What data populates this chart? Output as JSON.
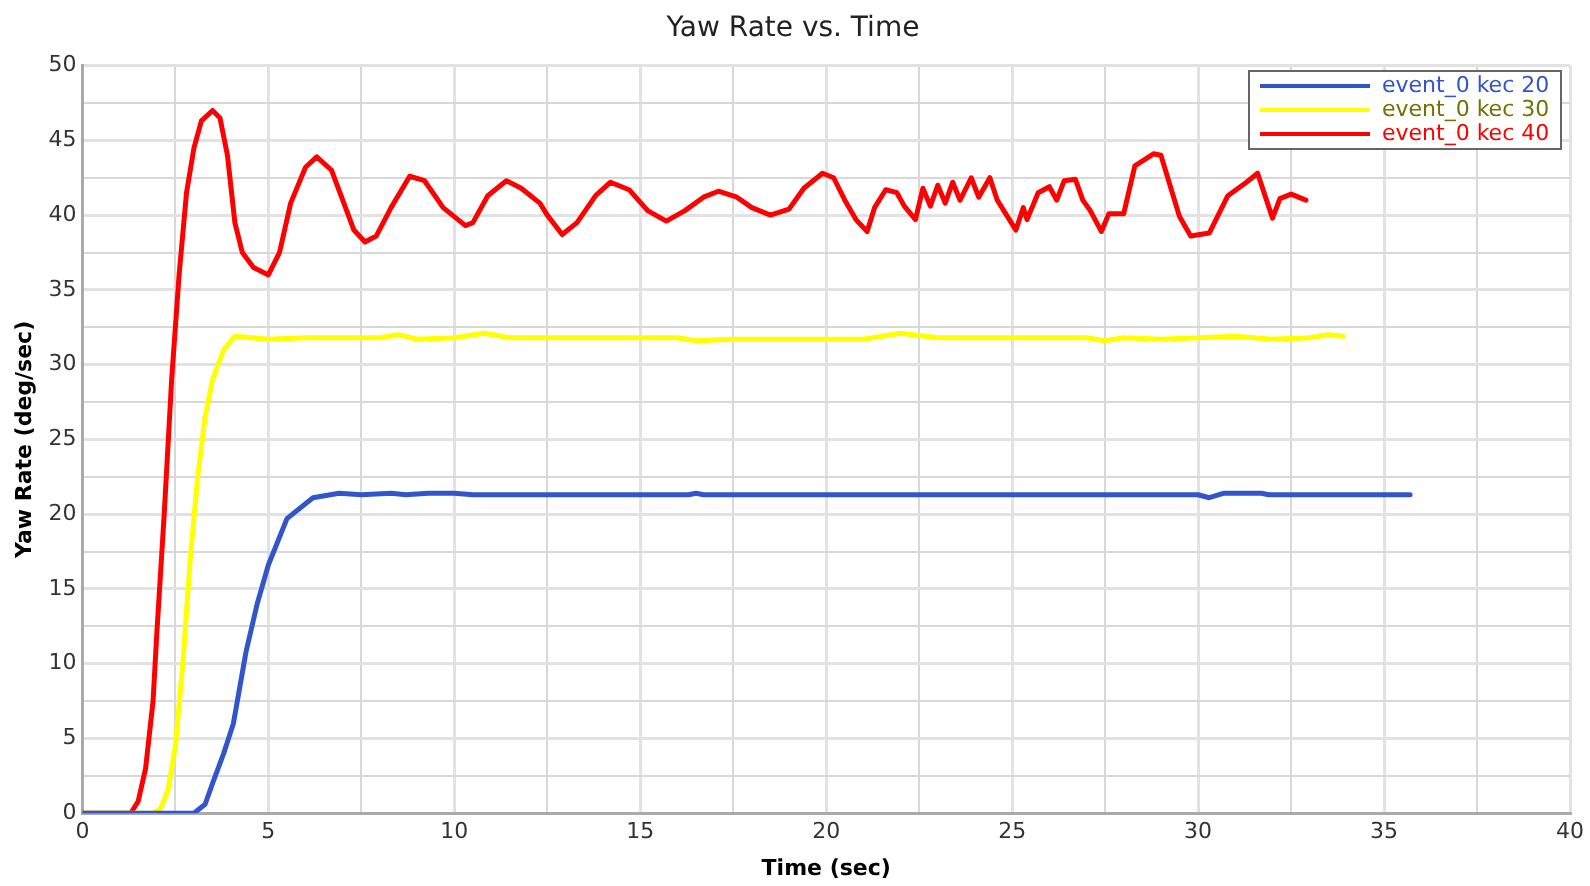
{
  "chart_data": {
    "type": "line",
    "title": "Yaw Rate vs. Time",
    "xlabel": "Time (sec)",
    "ylabel": "Yaw Rate (deg/sec)",
    "xlim": [
      0,
      40
    ],
    "ylim": [
      0,
      50
    ],
    "xticks": [
      0,
      {
        "value": 2.5,
        "label": null
      },
      5,
      {
        "value": 7.5,
        "label": null
      },
      10,
      {
        "value": 12.5,
        "label": null
      },
      15,
      {
        "value": 17.5,
        "label": null
      },
      20,
      {
        "value": 22.5,
        "label": null
      },
      25,
      {
        "value": 27.5,
        "label": null
      },
      30,
      {
        "value": 32.5,
        "label": null
      },
      35,
      {
        "value": 37.5,
        "label": null
      },
      40
    ],
    "yticks": [
      0,
      {
        "value": 2.5,
        "label": null
      },
      5,
      {
        "value": 7.5,
        "label": null
      },
      10,
      {
        "value": 12.5,
        "label": null
      },
      15,
      {
        "value": 17.5,
        "label": null
      },
      20,
      {
        "value": 22.5,
        "label": null
      },
      25,
      {
        "value": 27.5,
        "label": null
      },
      30,
      {
        "value": 32.5,
        "label": null
      },
      35,
      {
        "value": 37.5,
        "label": null
      },
      40,
      {
        "value": 42.5,
        "label": null
      },
      45,
      {
        "value": 47.5,
        "label": null
      },
      50
    ],
    "grid": true,
    "legend": "top right",
    "marker": "none",
    "line_style": "solid",
    "series": [
      {
        "name": "event_0 kec 20",
        "color": "#3355cc",
        "x": [
          0,
          3.0,
          3.3,
          3.5,
          3.8,
          4.06,
          4.4,
          4.7,
          5.0,
          5.5,
          6.2,
          6.9,
          7.5,
          8.3,
          8.7,
          9.3,
          10,
          10.5,
          16.3,
          16.5,
          16.7,
          30.0,
          30.3,
          30.7,
          31.7,
          31.9,
          35.7
        ],
        "values": [
          0,
          0,
          0.6,
          2,
          4,
          6,
          10.8,
          14,
          16.6,
          19.7,
          21.1,
          21.4,
          21.3,
          21.4,
          21.3,
          21.4,
          21.4,
          21.3,
          21.3,
          21.4,
          21.3,
          21.3,
          21.1,
          21.4,
          21.4,
          21.3,
          21.3
        ]
      },
      {
        "name": "event_0 kec 30",
        "color": "#ffff00",
        "x": [
          0,
          1.9,
          2.1,
          2.3,
          2.5,
          2.7,
          2.9,
          3.1,
          3.3,
          3.5,
          3.8,
          4.1,
          5,
          6,
          8,
          8.5,
          9,
          10,
          10.8,
          11.5,
          16,
          16.5,
          17.5,
          20,
          21,
          22,
          23,
          27,
          27.5,
          28,
          29,
          31,
          32,
          33,
          33.5,
          33.9
        ],
        "values": [
          0,
          0,
          0.3,
          1.5,
          4.5,
          10,
          17,
          22.5,
          26.5,
          29,
          31,
          31.9,
          31.7,
          31.8,
          31.8,
          32,
          31.7,
          31.8,
          32.1,
          31.8,
          31.8,
          31.6,
          31.7,
          31.7,
          31.7,
          32.1,
          31.8,
          31.8,
          31.6,
          31.8,
          31.7,
          31.9,
          31.7,
          31.8,
          32.0,
          31.9
        ]
      },
      {
        "name": "event_0 kec 40",
        "color": "#ff0000",
        "x": [
          0,
          1.3,
          1.5,
          1.7,
          1.9,
          2.0,
          2.2,
          2.4,
          2.6,
          2.8,
          3.0,
          3.2,
          3.5,
          3.7,
          3.9,
          4.1,
          4.3,
          4.6,
          5.0,
          5.3,
          5.6,
          6.0,
          6.3,
          6.7,
          7.0,
          7.3,
          7.6,
          7.9,
          8.3,
          8.8,
          9.2,
          9.7,
          10.3,
          10.5,
          10.9,
          11.4,
          11.8,
          12.3,
          12.5,
          12.9,
          13.3,
          13.8,
          14.2,
          14.7,
          15.2,
          15.7,
          16.2,
          16.7,
          17.1,
          17.6,
          18.0,
          18.5,
          19.0,
          19.4,
          19.9,
          20.2,
          20.5,
          20.8,
          21.1,
          21.3,
          21.6,
          21.9,
          22.1,
          22.4,
          22.6,
          22.8,
          23.0,
          23.2,
          23.4,
          23.6,
          23.9,
          24.1,
          24.4,
          24.6,
          24.8,
          25.1,
          25.3,
          25.4,
          25.7,
          26.0,
          26.2,
          26.4,
          26.7,
          26.9,
          27.1,
          27.4,
          27.6,
          28.0,
          28.3,
          28.8,
          29.0,
          29.5,
          29.8,
          30.3,
          30.8,
          31.3,
          31.6,
          32.0,
          32.2,
          32.5,
          32.9
        ],
        "values": [
          0,
          0,
          0.8,
          3,
          7.5,
          12,
          20,
          29,
          36,
          41.5,
          44.5,
          46.3,
          47,
          46.5,
          44,
          39.5,
          37.5,
          36.5,
          36.0,
          37.5,
          40.8,
          43.2,
          43.9,
          43,
          41,
          39,
          38.2,
          38.6,
          40.5,
          42.6,
          42.3,
          40.5,
          39.3,
          39.5,
          41.3,
          42.3,
          41.8,
          40.8,
          40.0,
          38.7,
          39.5,
          41.3,
          42.2,
          41.7,
          40.3,
          39.6,
          40.3,
          41.2,
          41.6,
          41.2,
          40.5,
          40.0,
          40.4,
          41.8,
          42.8,
          42.5,
          41,
          39.7,
          38.9,
          40.5,
          41.7,
          41.5,
          40.6,
          39.7,
          41.8,
          40.6,
          42.0,
          40.8,
          42.2,
          41.0,
          42.5,
          41.2,
          42.5,
          41,
          40.2,
          39.0,
          40.5,
          39.7,
          41.5,
          41.9,
          41,
          42.3,
          42.4,
          41,
          40.3,
          38.9,
          40.1,
          40.1,
          43.3,
          44.1,
          44,
          39.9,
          38.6,
          38.8,
          41.3,
          42.2,
          42.8,
          39.8,
          41.1,
          41.4,
          41.0
        ]
      }
    ]
  }
}
